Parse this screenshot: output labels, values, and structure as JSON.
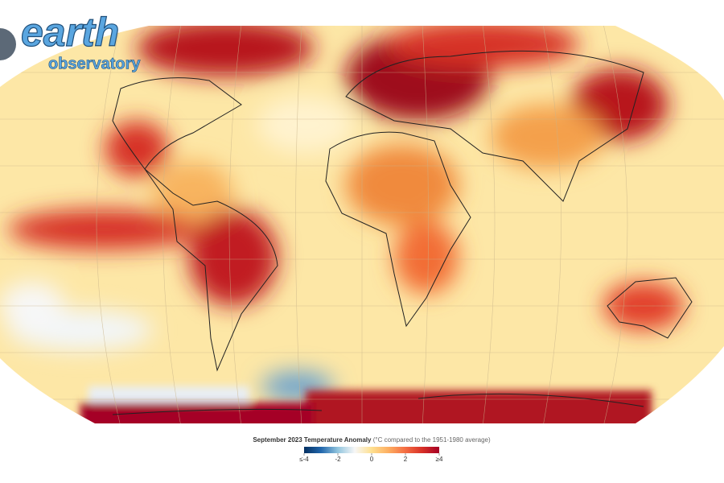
{
  "logo": {
    "word": "earth",
    "subword": "observatory"
  },
  "legend": {
    "title": "September 2023 Temperature Anomaly",
    "subtitle": "(°C compared to the 1951-1980 average)",
    "range": [
      -4,
      4
    ],
    "ticks": [
      {
        "value": -4,
        "label": "≤-4"
      },
      -2,
      0,
      2,
      {
        "value": 4,
        "label": "≥4"
      }
    ],
    "colors": [
      "#053061",
      "#2166ac",
      "#92c5de",
      "#f7f7f7",
      "#fee090",
      "#fdae61",
      "#f46d43",
      "#d73027",
      "#a50026"
    ]
  }
}
